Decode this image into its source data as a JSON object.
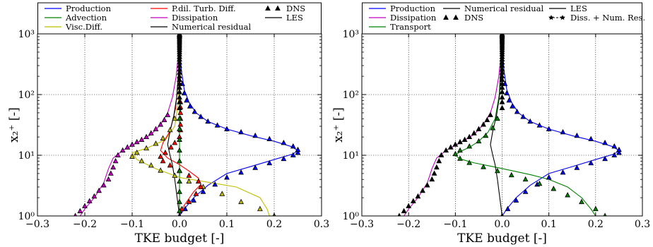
{
  "chart_data": [
    {
      "type": "line",
      "xlabel": "TKE budget [-]",
      "ylabel": "x₂⁺ [-]",
      "xlim": [
        -0.3,
        0.3
      ],
      "ylim": [
        1,
        1000
      ],
      "y_scale": "log",
      "x_ticks": [
        "−0.3",
        "−0.2",
        "−0.1",
        "0.0",
        "0.1",
        "0.2",
        "0.3"
      ],
      "y_ticks": [
        "10⁰",
        "10¹",
        "10²",
        "10³"
      ],
      "grid": true,
      "legend_position": "top",
      "legend": [
        {
          "label": "Production",
          "color": "#0000ff",
          "kind": "line"
        },
        {
          "label": "Advection",
          "color": "#008000",
          "kind": "line"
        },
        {
          "label": "Visc.Diff.",
          "color": "#bfbf00",
          "kind": "line"
        },
        {
          "label": "P.dil. Turb. Diff.",
          "color": "#ff0000",
          "kind": "line"
        },
        {
          "label": "Dissipation",
          "color": "#bf00bf",
          "kind": "line"
        },
        {
          "label": "Numerical residual",
          "color": "#000000",
          "kind": "line"
        },
        {
          "label": "DNS",
          "color": "#000000",
          "kind": "triangle"
        },
        {
          "label": "LES",
          "color": "#000000",
          "kind": "line"
        }
      ],
      "series": [
        {
          "name": "Production",
          "color": "#0000ff",
          "style": "line",
          "x": [
            0.0,
            0.01,
            0.03,
            0.06,
            0.1,
            0.15,
            0.2,
            0.24,
            0.25,
            0.235,
            0.2,
            0.15,
            0.1,
            0.06,
            0.035,
            0.02,
            0.01,
            0.004,
            0.0015,
            0.0
          ],
          "y": [
            1,
            1.3,
            2,
            3.2,
            5,
            6.5,
            8.5,
            10.5,
            12,
            14,
            17,
            21,
            27,
            36,
            50,
            75,
            120,
            250,
            500,
            1000
          ]
        },
        {
          "name": "Advection",
          "color": "#008000",
          "style": "line",
          "x": [
            0.0,
            0.0,
            0.0,
            0.0,
            0.0,
            0.0
          ],
          "y": [
            1,
            5,
            20,
            100,
            400,
            1000
          ]
        },
        {
          "name": "Visc.Diff.",
          "color": "#bfbf00",
          "style": "line",
          "x": [
            0.19,
            0.185,
            0.17,
            0.12,
            0.06,
            0.0,
            -0.05,
            -0.09,
            -0.1,
            -0.07,
            -0.03,
            -0.01,
            -0.002,
            0.0
          ],
          "y": [
            1,
            1.3,
            2,
            3,
            3.6,
            4.3,
            6,
            8.5,
            11,
            13,
            18,
            30,
            80,
            1000
          ]
        },
        {
          "name": "P.dil. Turb. Diff.",
          "color": "#ff0000",
          "style": "line",
          "x": [
            0.0,
            0.01,
            0.03,
            0.045,
            0.04,
            0.02,
            0.0,
            -0.025,
            -0.04,
            -0.035,
            -0.02,
            -0.008,
            -0.002,
            0.0
          ],
          "y": [
            1,
            1.5,
            2.5,
            3.3,
            4.2,
            5.5,
            7,
            9,
            12,
            16,
            25,
            60,
            200,
            1000
          ]
        },
        {
          "name": "Dissipation",
          "color": "#bf00bf",
          "style": "line",
          "x": [
            -0.21,
            -0.2,
            -0.18,
            -0.16,
            -0.15,
            -0.14,
            -0.12,
            -0.09,
            -0.06,
            -0.04,
            -0.025,
            -0.015,
            -0.007,
            -0.002,
            0.0
          ],
          "y": [
            1,
            1.3,
            2,
            3.5,
            6,
            9,
            12,
            16,
            22,
            32,
            50,
            90,
            200,
            500,
            1000
          ]
        },
        {
          "name": "Numerical residual",
          "color": "#000000",
          "style": "line",
          "x": [
            0.0,
            -0.005,
            -0.01,
            -0.015,
            -0.02,
            -0.025,
            -0.02,
            -0.012,
            -0.006,
            -0.002,
            0.0
          ],
          "y": [
            1,
            2,
            4,
            7,
            10,
            15,
            25,
            45,
            90,
            250,
            1000
          ]
        },
        {
          "name": "DNS Production",
          "color": "#0000ff",
          "style": "triangle",
          "x": [
            0.0,
            0.012,
            0.03,
            0.05,
            0.075,
            0.1,
            0.13,
            0.16,
            0.19,
            0.22,
            0.24,
            0.25,
            0.25,
            0.24,
            0.22,
            0.19,
            0.16,
            0.13,
            0.1,
            0.08,
            0.06,
            0.045,
            0.032,
            0.022,
            0.015,
            0.01,
            0.006
          ],
          "y": [
            1,
            1.3,
            1.8,
            2.5,
            3.3,
            4.3,
            5.2,
            6.2,
            7.4,
            8.7,
            10,
            11,
            12.3,
            14,
            16,
            18.5,
            21,
            24,
            27,
            31,
            36,
            43,
            52,
            64,
            80,
            105,
            150
          ]
        },
        {
          "name": "DNS Visc.Diff.",
          "color": "#bfbf00",
          "style": "triangle",
          "x": [
            0.2,
            0.17,
            0.13,
            0.09,
            0.05,
            0.02,
            -0.01,
            -0.04,
            -0.06,
            -0.08,
            -0.1,
            -0.09,
            -0.07,
            -0.05,
            -0.035,
            -0.02,
            -0.01
          ],
          "y": [
            1,
            1.3,
            1.7,
            2.3,
            3,
            3.7,
            4.6,
            5.6,
            6.8,
            8,
            9.5,
            11,
            13,
            15.5,
            19,
            26,
            40
          ]
        },
        {
          "name": "DNS P.dil. Turb. Diff.",
          "color": "#ff0000",
          "style": "triangle",
          "x": [
            0.005,
            0.02,
            0.035,
            0.045,
            0.04,
            0.02,
            0.0,
            -0.02,
            -0.035,
            -0.04,
            -0.03,
            -0.018,
            -0.01,
            0.0,
            0.002,
            0.002,
            0.002,
            0.002,
            0.002,
            0.002
          ],
          "y": [
            1.3,
            1.7,
            2.3,
            3,
            3.7,
            4.6,
            5.6,
            6.8,
            8,
            9.5,
            11,
            13.5,
            16,
            20,
            26,
            32,
            40,
            50,
            62,
            75
          ]
        },
        {
          "name": "DNS Dissipation",
          "color": "#bf00bf",
          "style": "triangle",
          "x": [
            -0.22,
            -0.21,
            -0.2,
            -0.19,
            -0.18,
            -0.17,
            -0.16,
            -0.15,
            -0.145,
            -0.14,
            -0.135,
            -0.13,
            -0.12,
            -0.11,
            -0.1,
            -0.09,
            -0.08,
            -0.07,
            -0.06,
            -0.05,
            -0.04,
            -0.032,
            -0.025
          ],
          "y": [
            1,
            1.2,
            1.45,
            1.75,
            2.1,
            2.6,
            3.2,
            4,
            5,
            6.3,
            8,
            10,
            12,
            13.5,
            15,
            16.5,
            18,
            20,
            23,
            27,
            32,
            38,
            46
          ]
        },
        {
          "name": "DNS Advection",
          "color": "#008000",
          "style": "triangle",
          "x": [
            0.0,
            0.0,
            0.0,
            0.0,
            0.0,
            0.0,
            0.0,
            0.0,
            0.0,
            0.0
          ],
          "y": [
            1.2,
            1.7,
            2.5,
            3.7,
            5.5,
            8,
            12,
            18,
            27,
            40
          ]
        },
        {
          "name": "DNS centre",
          "color": "#000000",
          "style": "triangle",
          "x": [
            0.0,
            0.0,
            0.0,
            0.0,
            0.0,
            0.0,
            0.0,
            0.0,
            0.0,
            0.0,
            0.0,
            0.0,
            0.0,
            0.0,
            0.0,
            0.0,
            0.0,
            0.0,
            0.0,
            0.0,
            0.0,
            0.0,
            0.0,
            0.0,
            0.0,
            0.0,
            0.0,
            0.0,
            0.0,
            0.0
          ],
          "y": [
            60,
            75,
            90,
            110,
            130,
            150,
            175,
            200,
            230,
            260,
            300,
            340,
            380,
            420,
            460,
            500,
            540,
            580,
            620,
            660,
            700,
            740,
            780,
            820,
            860,
            900,
            930,
            960,
            980,
            1000
          ]
        }
      ]
    },
    {
      "type": "line",
      "xlabel": "TKE budget [-]",
      "ylabel": "x₂⁺ [-]",
      "xlim": [
        -0.3,
        0.3
      ],
      "ylim": [
        1,
        1000
      ],
      "y_scale": "log",
      "x_ticks": [
        "−0.3",
        "−0.2",
        "−0.1",
        "0.0",
        "0.1",
        "0.2",
        "0.3"
      ],
      "y_ticks": [
        "10⁰",
        "10¹",
        "10²",
        "10³"
      ],
      "grid": true,
      "legend_position": "top",
      "legend": [
        {
          "label": "Production",
          "color": "#0000ff",
          "kind": "line"
        },
        {
          "label": "Dissipation",
          "color": "#bf00bf",
          "kind": "line"
        },
        {
          "label": "Transport",
          "color": "#008000",
          "kind": "line"
        },
        {
          "label": "Numerical residual",
          "color": "#000000",
          "kind": "line"
        },
        {
          "label": "DNS",
          "color": "#000000",
          "kind": "triangle"
        },
        {
          "label": "LES",
          "color": "#000000",
          "kind": "line"
        },
        {
          "label": "Diss. + Num. Res.",
          "color": "#000000",
          "kind": "star"
        }
      ],
      "series": [
        {
          "name": "Production",
          "color": "#0000ff",
          "style": "line",
          "x": [
            0.0,
            0.01,
            0.03,
            0.06,
            0.1,
            0.15,
            0.2,
            0.24,
            0.25,
            0.235,
            0.2,
            0.15,
            0.1,
            0.06,
            0.035,
            0.02,
            0.01,
            0.004,
            0.0015,
            0.0
          ],
          "y": [
            1,
            1.3,
            2,
            3.2,
            5,
            6.5,
            8.5,
            10.5,
            12,
            14,
            17,
            21,
            27,
            36,
            50,
            75,
            120,
            250,
            500,
            1000
          ]
        },
        {
          "name": "Dissipation",
          "color": "#bf00bf",
          "style": "line",
          "x": [
            -0.21,
            -0.2,
            -0.18,
            -0.16,
            -0.15,
            -0.14,
            -0.12,
            -0.09,
            -0.06,
            -0.04,
            -0.025,
            -0.015,
            -0.007,
            -0.002,
            0.0
          ],
          "y": [
            1,
            1.3,
            2,
            3.5,
            6,
            9,
            12,
            16,
            22,
            32,
            50,
            90,
            200,
            500,
            1000
          ]
        },
        {
          "name": "Transport",
          "color": "#008000",
          "style": "line",
          "x": [
            0.2,
            0.19,
            0.17,
            0.14,
            0.1,
            0.06,
            0.02,
            -0.02,
            -0.06,
            -0.09,
            -0.1,
            -0.09,
            -0.07,
            -0.05,
            -0.03,
            -0.015,
            -0.006,
            0.0
          ],
          "y": [
            1,
            1.3,
            2,
            3,
            4,
            4.8,
            5.6,
            6.5,
            7.5,
            8.7,
            10,
            11.5,
            13.5,
            17,
            24,
            40,
            100,
            1000
          ]
        },
        {
          "name": "Numerical residual",
          "color": "#000000",
          "style": "line",
          "x": [
            0.0,
            -0.005,
            -0.01,
            -0.015,
            -0.02,
            -0.025,
            -0.02,
            -0.012,
            -0.006,
            -0.002,
            0.0
          ],
          "y": [
            1,
            2,
            4,
            7,
            10,
            15,
            25,
            45,
            90,
            250,
            1000
          ]
        },
        {
          "name": "DNS Production",
          "color": "#0000ff",
          "style": "triangle",
          "x": [
            0.0,
            0.012,
            0.03,
            0.05,
            0.075,
            0.1,
            0.13,
            0.16,
            0.19,
            0.22,
            0.24,
            0.25,
            0.25,
            0.24,
            0.22,
            0.19,
            0.16,
            0.13,
            0.1,
            0.08,
            0.06,
            0.045,
            0.032,
            0.022,
            0.015,
            0.01,
            0.006
          ],
          "y": [
            1,
            1.3,
            1.8,
            2.5,
            3.3,
            4.3,
            5.2,
            6.2,
            7.4,
            8.7,
            10,
            11,
            12.3,
            14,
            16,
            18.5,
            21,
            24,
            27,
            31,
            36,
            43,
            52,
            64,
            80,
            105,
            150
          ]
        },
        {
          "name": "DNS Transport",
          "color": "#008000",
          "style": "triangle",
          "x": [
            0.22,
            0.2,
            0.17,
            0.14,
            0.11,
            0.08,
            0.05,
            0.02,
            -0.01,
            -0.04,
            -0.07,
            -0.09,
            -0.1,
            -0.09,
            -0.07,
            -0.05,
            -0.035,
            -0.02,
            -0.01
          ],
          "y": [
            1,
            1.3,
            1.7,
            2.2,
            2.8,
            3.4,
            4,
            4.7,
            5.5,
            6.4,
            7.5,
            8.8,
            10.5,
            12,
            14,
            17,
            21,
            28,
            40
          ]
        },
        {
          "name": "DNS Diss. + Num. Res.",
          "color": "#000000",
          "style": "triangle",
          "x": [
            -0.22,
            -0.21,
            -0.2,
            -0.19,
            -0.18,
            -0.17,
            -0.16,
            -0.15,
            -0.145,
            -0.14,
            -0.135,
            -0.13,
            -0.12,
            -0.11,
            -0.1,
            -0.09,
            -0.08,
            -0.07,
            -0.06,
            -0.05,
            -0.04,
            -0.032,
            -0.025
          ],
          "y": [
            1,
            1.2,
            1.45,
            1.75,
            2.1,
            2.6,
            3.2,
            4,
            5,
            6.3,
            8,
            10,
            12,
            13.5,
            15,
            16.5,
            18,
            20,
            23,
            27,
            32,
            38,
            46
          ]
        },
        {
          "name": "DNS centre",
          "color": "#000000",
          "style": "triangle",
          "x": [
            0.0,
            0.0,
            0.0,
            0.0,
            0.0,
            0.0,
            0.0,
            0.0,
            0.0,
            0.0,
            0.0,
            0.0,
            0.0,
            0.0,
            0.0,
            0.0,
            0.0,
            0.0,
            0.0,
            0.0,
            0.0,
            0.0,
            0.0,
            0.0,
            0.0,
            0.0,
            0.0,
            0.0,
            0.0,
            0.0
          ],
          "y": [
            60,
            75,
            90,
            110,
            130,
            150,
            175,
            200,
            230,
            260,
            300,
            340,
            380,
            420,
            460,
            500,
            540,
            580,
            620,
            660,
            700,
            740,
            780,
            820,
            860,
            900,
            930,
            960,
            980,
            1000
          ]
        }
      ]
    }
  ]
}
